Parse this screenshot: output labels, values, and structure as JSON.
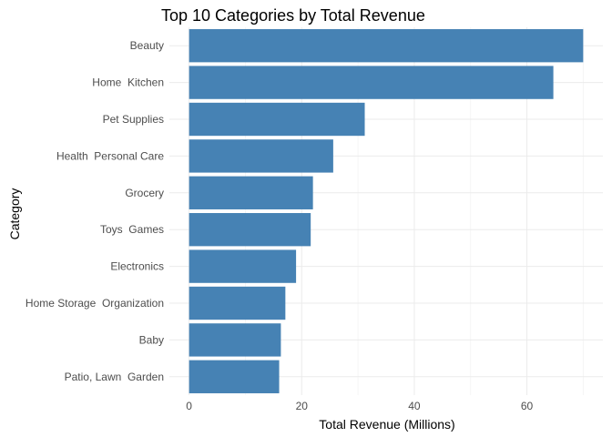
{
  "chart_data": {
    "type": "bar",
    "orientation": "horizontal",
    "title": "Top 10 Categories by Total Revenue",
    "xlabel": "Total Revenue (Millions)",
    "ylabel": "Category",
    "categories": [
      "Beauty",
      "Home  Kitchen",
      "Pet Supplies",
      "Health  Personal Care",
      "Grocery",
      "Toys  Games",
      "Electronics",
      "Home Storage  Organization",
      "Baby",
      "Patio, Lawn  Garden"
    ],
    "values": [
      70.0,
      64.7,
      31.2,
      25.6,
      22.0,
      21.6,
      19.0,
      17.1,
      16.3,
      16.0
    ],
    "xlim": [
      -3.5,
      73.5
    ],
    "xticks": [
      0,
      20,
      40,
      60
    ],
    "xtick_labels": [
      "0",
      "20",
      "40",
      "60"
    ],
    "bar_color": "#4682b4",
    "grid": true,
    "legend": "none"
  }
}
